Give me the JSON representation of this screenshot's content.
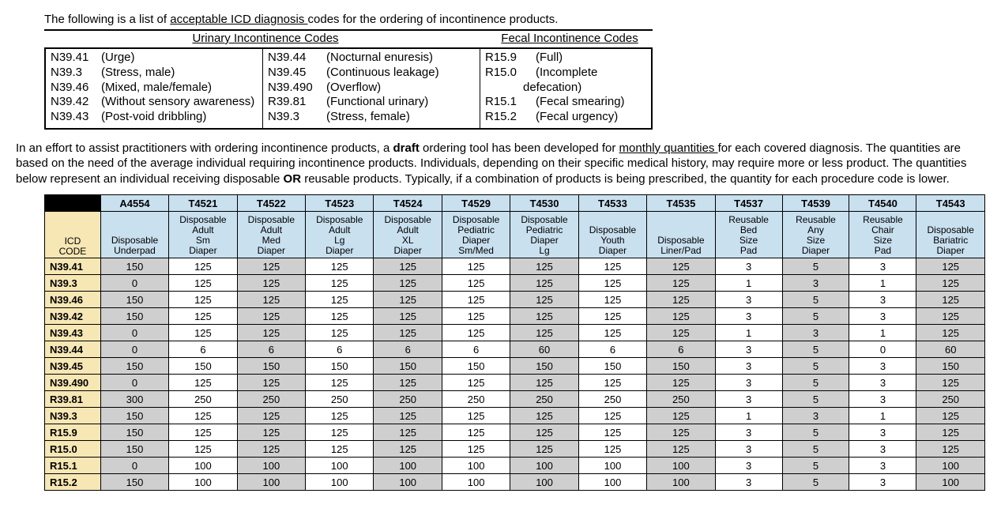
{
  "intro": {
    "prefix": "The following is a list of ",
    "underlined": "acceptable ICD diagnosis ",
    "suffix": "codes for the ordering of incontinence products."
  },
  "codes_box": {
    "urinary_header": "Urinary Incontinence Codes",
    "fecal_header": "Fecal Incontinence Codes",
    "col1": [
      {
        "code": "N39.41",
        "desc": "(Urge)"
      },
      {
        "code": "N39.3",
        "desc": "(Stress, male)"
      },
      {
        "code": "N39.46",
        "desc": "(Mixed, male/female)"
      },
      {
        "code": "N39.42",
        "desc": "(Without sensory awareness)"
      },
      {
        "code": "N39.43",
        "desc": "(Post-void dribbling)"
      }
    ],
    "col2": [
      {
        "code": "N39.44",
        "desc": "(Nocturnal enuresis)"
      },
      {
        "code": "N39.45",
        "desc": "(Continuous leakage)"
      },
      {
        "code": "N39.490",
        "desc": "(Overflow)"
      },
      {
        "code": "R39.81",
        "desc": "(Functional urinary)"
      },
      {
        "code": "N39.3",
        "desc": "(Stress, female)"
      }
    ],
    "col3": [
      {
        "code": "R15.9",
        "desc": "(Full)"
      },
      {
        "code": "R15.0",
        "desc": "(Incomplete"
      },
      {
        "indent": "defecation)"
      },
      {
        "code": "R15.1",
        "desc": "(Fecal smearing)"
      },
      {
        "code": "R15.2",
        "desc": "(Fecal urgency)"
      }
    ]
  },
  "paragraph": {
    "p1a": "In an effort to assist practitioners with ordering incontinence products, a ",
    "p1b": "draft",
    "p1c": " ordering tool has been developed for ",
    "p1d": "monthly quantities ",
    "p1e": "for each covered diagnosis. The quantities are based on the need of the average individual requiring incontinence products. Individuals, depending on their specific medical history, may require more or less product.  The quantities below represent an individual receiving disposable ",
    "p1f": "OR",
    "p1g": " reusable products. Typically, if a combination of products is being prescribed, the quantity for each procedure code is lower."
  },
  "table": {
    "icd_header": "ICD CODE",
    "proc_codes": [
      "A4554",
      "T4521",
      "T4522",
      "T4523",
      "T4524",
      "T4529",
      "T4530",
      "T4533",
      "T4535",
      "T4537",
      "T4539",
      "T4540",
      "T4543"
    ],
    "descriptions": [
      "Disposable Underpad",
      "Disposable Adult Sm Diaper",
      "Disposable Adult Med Diaper",
      "Disposable Adult Lg Diaper",
      "Disposable Adult XL Diaper",
      "Disposable Pediatric Diaper Sm/Med",
      "Disposable Pediatric Diaper Lg",
      "Disposable Youth Diaper",
      "Disposable Liner/Pad",
      "Reusable Bed Size Pad",
      "Reusable Any Size Diaper",
      "Reusable Chair Size Pad",
      "Disposable Bariatric Diaper"
    ],
    "rows": [
      {
        "icd": "N39.41",
        "v": [
          150,
          125,
          125,
          125,
          125,
          125,
          125,
          125,
          125,
          3,
          5,
          3,
          125
        ]
      },
      {
        "icd": "N39.3",
        "v": [
          0,
          125,
          125,
          125,
          125,
          125,
          125,
          125,
          125,
          1,
          3,
          1,
          125
        ]
      },
      {
        "icd": "N39.46",
        "v": [
          150,
          125,
          125,
          125,
          125,
          125,
          125,
          125,
          125,
          3,
          5,
          3,
          125
        ]
      },
      {
        "icd": "N39.42",
        "v": [
          150,
          125,
          125,
          125,
          125,
          125,
          125,
          125,
          125,
          3,
          5,
          3,
          125
        ]
      },
      {
        "icd": "N39.43",
        "v": [
          0,
          125,
          125,
          125,
          125,
          125,
          125,
          125,
          125,
          1,
          3,
          1,
          125
        ]
      },
      {
        "icd": "N39.44",
        "v": [
          0,
          6,
          6,
          6,
          6,
          6,
          60,
          6,
          6,
          3,
          5,
          0,
          60
        ]
      },
      {
        "icd": "N39.45",
        "v": [
          150,
          150,
          150,
          150,
          150,
          150,
          150,
          150,
          150,
          3,
          5,
          3,
          150
        ]
      },
      {
        "icd": "N39.490",
        "v": [
          0,
          125,
          125,
          125,
          125,
          125,
          125,
          125,
          125,
          3,
          5,
          3,
          125
        ]
      },
      {
        "icd": "R39.81",
        "v": [
          300,
          250,
          250,
          250,
          250,
          250,
          250,
          250,
          250,
          3,
          5,
          3,
          250
        ]
      },
      {
        "icd": "N39.3",
        "v": [
          150,
          125,
          125,
          125,
          125,
          125,
          125,
          125,
          125,
          1,
          3,
          1,
          125
        ]
      },
      {
        "icd": "R15.9",
        "v": [
          150,
          125,
          125,
          125,
          125,
          125,
          125,
          125,
          125,
          3,
          5,
          3,
          125
        ]
      },
      {
        "icd": "R15.0",
        "v": [
          150,
          125,
          125,
          125,
          125,
          125,
          125,
          125,
          125,
          3,
          5,
          3,
          125
        ]
      },
      {
        "icd": "R15.1",
        "v": [
          0,
          100,
          100,
          100,
          100,
          100,
          100,
          100,
          100,
          3,
          5,
          3,
          100
        ]
      },
      {
        "icd": "R15.2",
        "v": [
          150,
          100,
          100,
          100,
          100,
          100,
          100,
          100,
          100,
          3,
          5,
          3,
          100
        ]
      }
    ],
    "grey_cols": [
      0,
      2,
      4,
      6,
      8,
      10,
      12
    ],
    "colors": {
      "header_bg": "#c9e0ef",
      "icd_bg": "#f6e7b4",
      "grey_bg": "#cfcfcf",
      "white_bg": "#ffffff",
      "border": "#000000"
    }
  }
}
